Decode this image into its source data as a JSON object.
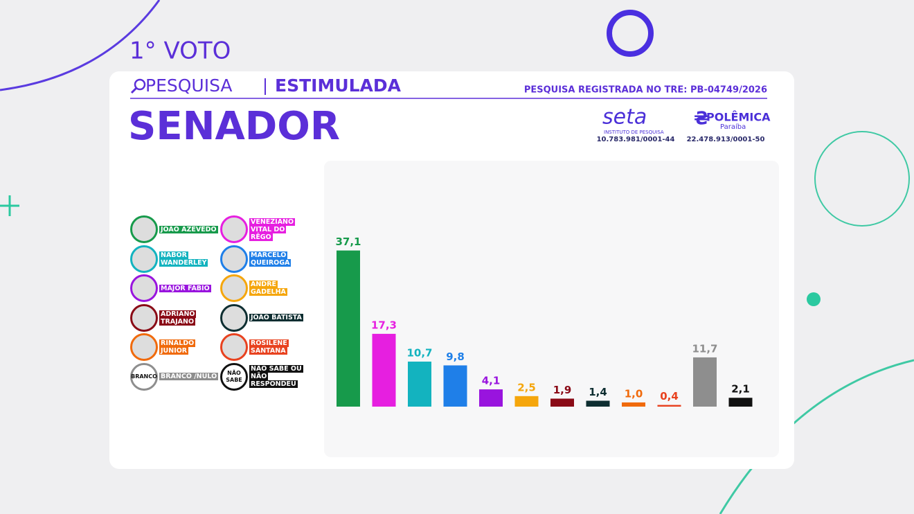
{
  "header": {
    "vote_round": "1° VOTO",
    "survey_label": "PESQUISA",
    "survey_type": "ESTIMULADA",
    "registration": "PESQUISA REGISTRADA NO TRE: PB-04749/2026",
    "office": "SENADOR",
    "institute_name": "seta",
    "institute_subtitle": "INSTITUTO DE PESQUISA",
    "institute_cnpj": "10.783.981/0001-44",
    "media_name": "POLÊMICA",
    "media_subtitle": "Paraíba",
    "media_cnpj": "22.478.913/0001-50"
  },
  "chart_data": {
    "type": "bar",
    "categories": [
      "JOÃO AZEVÊDO",
      "VENEZIANO VITAL DO RÊGO",
      "NABOR WANDERLEY",
      "MARCELO QUEIROGA",
      "MAJOR FÁBIO",
      "ANDRÉ GADELHA",
      "ADRIANO TRAJANO",
      "JOÃO BATISTA",
      "RINALDO JUNIOR",
      "ROSILENE SANTANA",
      "BRANCO /NULO",
      "NÃO SABE OU NÃO RESPONDEU"
    ],
    "values": [
      37.1,
      17.3,
      10.7,
      9.8,
      4.1,
      2.5,
      1.9,
      1.4,
      1.0,
      0.4,
      11.7,
      2.1
    ],
    "value_labels": [
      "37,1",
      "17,3",
      "10,7",
      "9,8",
      "4,1",
      "2,5",
      "1,9",
      "1,4",
      "1,0",
      "0,4",
      "11,7",
      "2,1"
    ],
    "colors": [
      "#179a4b",
      "#e61fe0",
      "#13b3bf",
      "#1f7fe8",
      "#9914de",
      "#f5a60c",
      "#8a0a16",
      "#0e2e31",
      "#f06a0c",
      "#e8421f",
      "#8e8e8e",
      "#111111"
    ],
    "icon_labels": [
      null,
      null,
      null,
      null,
      null,
      null,
      null,
      null,
      null,
      null,
      "BRANCO",
      "NÃO SABE"
    ],
    "ylim": [
      0,
      40
    ]
  }
}
